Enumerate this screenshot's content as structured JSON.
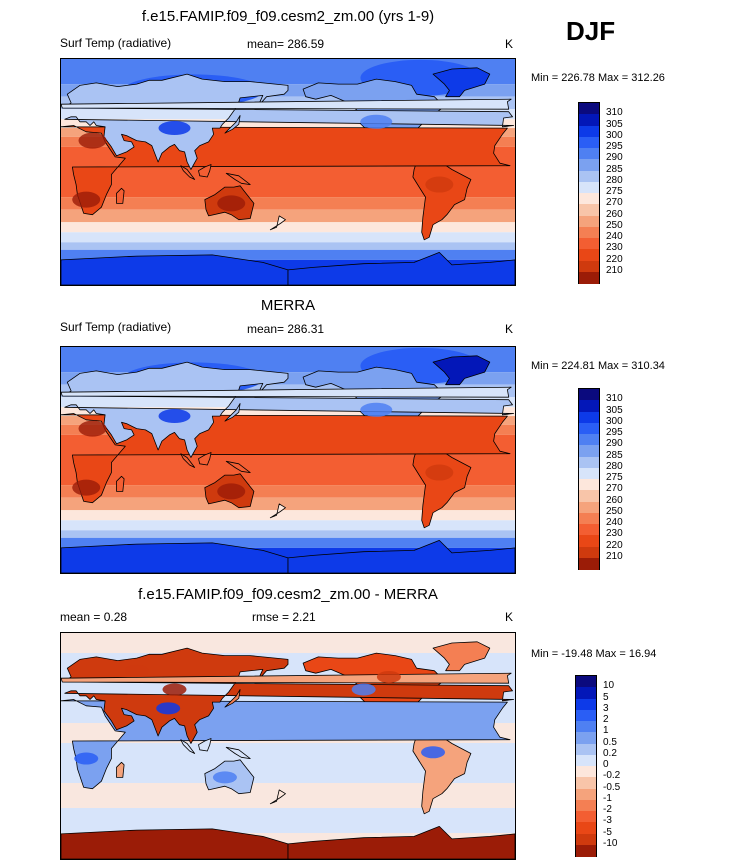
{
  "season": "DJF",
  "palettes": {
    "abs": [
      "#0b0a7e",
      "#0317b8",
      "#0d3ae8",
      "#2a5ef5",
      "#4f80f2",
      "#7ba1f0",
      "#aac3f3",
      "#d7e4fa",
      "#fde7dc",
      "#f8c5a9",
      "#f5a37c",
      "#f47f53",
      "#f35e32",
      "#e94716",
      "#cf3a0e",
      "#9b1c07"
    ],
    "diff": [
      "#0b0a7e",
      "#0317b8",
      "#0d3ae8",
      "#2a5ef5",
      "#4f80f2",
      "#7ba1f0",
      "#aac3f3",
      "#d7e4fa",
      "#fde7dc",
      "#f8c5a9",
      "#f5a37c",
      "#f47f53",
      "#f35e32",
      "#e94716",
      "#cf3a0e",
      "#9b1c07"
    ]
  },
  "panels": [
    {
      "title": "f.e15.FAMIP.f09_f09.cesm2_zm.00 (yrs 1-9)",
      "var_label": "Surf Temp (radiative)",
      "mean_label": "mean= 286.59",
      "units": "K",
      "minmax": "Min = 226.78 Max = 312.26",
      "ticks": [
        "310",
        "305",
        "300",
        "295",
        "290",
        "285",
        "280",
        "275",
        "270",
        "260",
        "250",
        "240",
        "230",
        "220",
        "210"
      ],
      "palette": "abs",
      "field": "model"
    },
    {
      "title": "MERRA",
      "var_label": "Surf Temp (radiative)",
      "mean_label": "mean= 286.31",
      "units": "K",
      "minmax": "Min = 224.81 Max = 310.34",
      "ticks": [
        "310",
        "305",
        "300",
        "295",
        "290",
        "285",
        "280",
        "275",
        "270",
        "260",
        "250",
        "240",
        "230",
        "220",
        "210"
      ],
      "palette": "abs",
      "field": "obs"
    },
    {
      "title": "f.e15.FAMIP.f09_f09.cesm2_zm.00 - MERRA",
      "mean_label": "mean =   0.28",
      "rmse_label": "rmse =   2.21",
      "units": "K",
      "minmax": "Min = -19.48 Max =  16.94",
      "ticks": [
        "10",
        "5",
        "3",
        "2",
        "1",
        "0.5",
        "0.2",
        "0",
        "-0.2",
        "-0.5",
        "-1",
        "-2",
        "-3",
        "-5",
        "-10"
      ],
      "palette": "diff",
      "field": "diff"
    }
  ],
  "chart_data": [
    {
      "type": "heatmap",
      "title": "f.e15.FAMIP.f09_f09.cesm2_zm.00 (yrs 1-9)",
      "subtitle_left": "Surf Temp (radiative)",
      "subtitle_center": "mean= 286.59",
      "units": "K",
      "min": 226.78,
      "max": 312.26,
      "contour_levels": [
        210,
        220,
        230,
        240,
        250,
        260,
        270,
        275,
        280,
        285,
        290,
        295,
        300,
        305,
        310
      ],
      "x": "longitude",
      "y": "latitude"
    },
    {
      "type": "heatmap",
      "title": "MERRA",
      "subtitle_left": "Surf Temp (radiative)",
      "subtitle_center": "mean= 286.31",
      "units": "K",
      "min": 224.81,
      "max": 310.34,
      "contour_levels": [
        210,
        220,
        230,
        240,
        250,
        260,
        270,
        275,
        280,
        285,
        290,
        295,
        300,
        305,
        310
      ],
      "x": "longitude",
      "y": "latitude"
    },
    {
      "type": "heatmap",
      "title": "f.e15.FAMIP.f09_f09.cesm2_zm.00 - MERRA",
      "mean": 0.28,
      "rmse": 2.21,
      "units": "K",
      "min": -19.48,
      "max": 16.94,
      "contour_levels": [
        -10,
        -5,
        -3,
        -2,
        -1,
        -0.5,
        -0.2,
        0,
        0.2,
        0.5,
        1,
        2,
        3,
        5,
        10
      ],
      "x": "longitude",
      "y": "latitude"
    }
  ]
}
